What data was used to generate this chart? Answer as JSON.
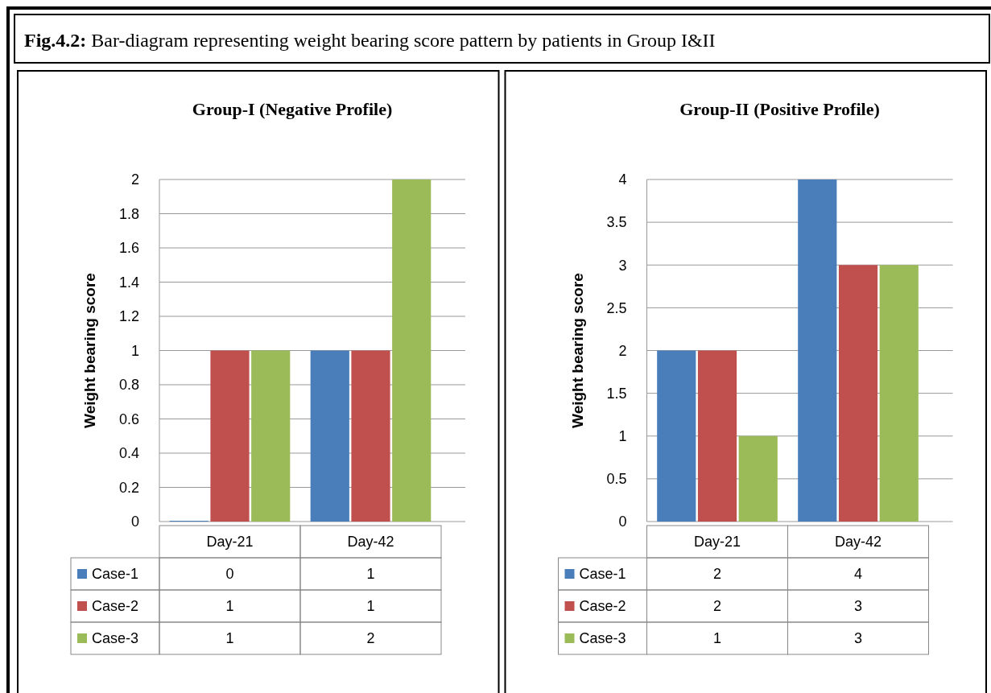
{
  "chart_data": [
    {
      "type": "bar",
      "title": "Group-I (Negative Profile)",
      "ylabel": "Weight bearing score",
      "annotations": [
        "Fig.4.2: Bar-diagram representing weight bearing score pattern by patients in Group I&II"
      ],
      "categories": [
        "Day-21",
        "Day-42"
      ],
      "series": [
        {
          "name": "Case-1",
          "color": "#4a7ebb",
          "values": [
            0,
            1
          ]
        },
        {
          "name": "Case-2",
          "color": "#c0504d",
          "values": [
            1,
            1
          ]
        },
        {
          "name": "Case-3",
          "color": "#9bbb59",
          "values": [
            1,
            2
          ]
        }
      ],
      "ylim": [
        0,
        2
      ],
      "yticks": [
        0,
        0.2,
        0.4,
        0.6,
        0.8,
        1,
        1.2,
        1.4,
        1.6,
        1.8,
        2
      ],
      "grid": "y",
      "legend": "bottom",
      "data_labels": true
    },
    {
      "type": "bar",
      "title": "Group-II (Positive Profile)",
      "ylabel": "Weight bearing score",
      "categories": [
        "Day-21",
        "Day-42"
      ],
      "series": [
        {
          "name": "Case-1",
          "color": "#4a7ebb",
          "values": [
            2,
            4
          ]
        },
        {
          "name": "Case-2",
          "color": "#c0504d",
          "values": [
            2,
            3
          ]
        },
        {
          "name": "Case-3",
          "color": "#9bbb59",
          "values": [
            1,
            3
          ]
        }
      ],
      "ylim": [
        0,
        4
      ],
      "yticks": [
        0,
        0.5,
        1,
        1.5,
        2,
        2.5,
        3,
        3.5,
        4
      ],
      "grid": "y",
      "legend": "bottom",
      "data_labels": true
    }
  ]
}
